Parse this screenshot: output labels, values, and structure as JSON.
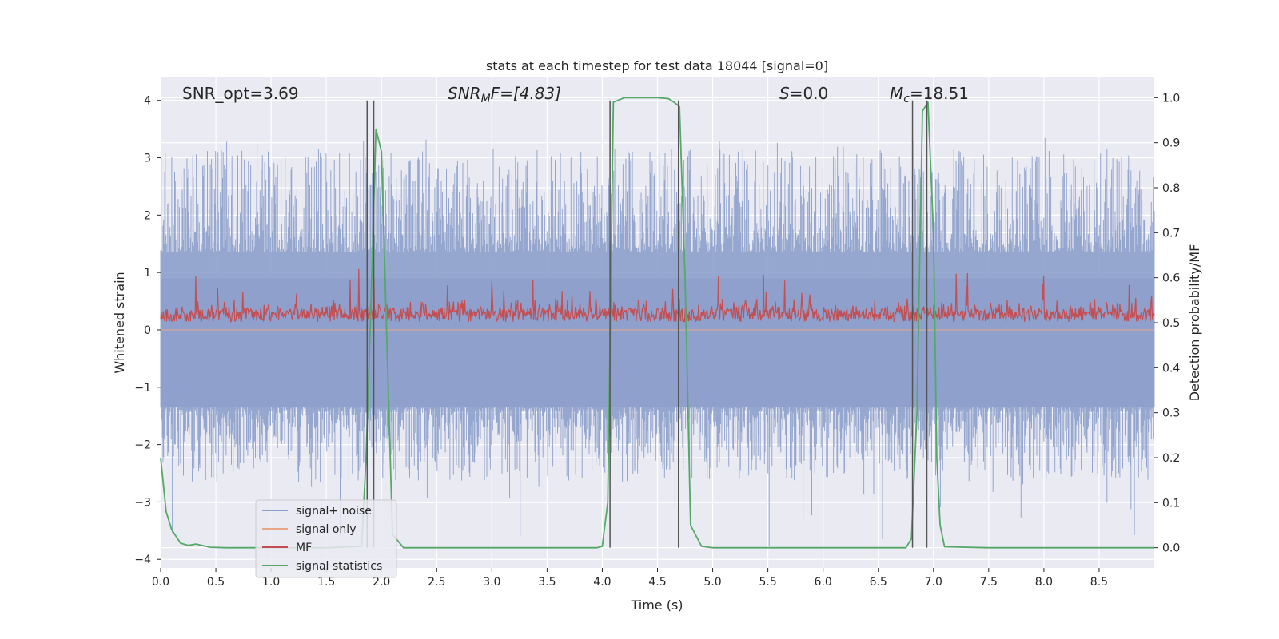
{
  "chart_data": {
    "type": "line",
    "title": "stats at each timestep for test data 18044 [signal=0]",
    "xlabel": "Time (s)",
    "ylabel_left": "Whitened strain",
    "ylabel_right": "Detection probability/MF",
    "xlim": [
      0.0,
      9.0
    ],
    "ylim_left": [
      -4.15,
      4.4
    ],
    "ylim_right": [
      -0.045,
      1.045
    ],
    "xticks": [
      0.0,
      0.5,
      1.0,
      1.5,
      2.0,
      2.5,
      3.0,
      3.5,
      4.0,
      4.5,
      5.0,
      5.5,
      6.0,
      6.5,
      7.0,
      7.5,
      8.0,
      8.5
    ],
    "xtick_labels": [
      "0.0",
      "0.5",
      "1.0",
      "1.5",
      "2.0",
      "2.5",
      "3.0",
      "3.5",
      "4.0",
      "4.5",
      "5.0",
      "5.5",
      "6.0",
      "6.5",
      "7.0",
      "7.5",
      "8.0",
      "8.5"
    ],
    "yticks_left": [
      4,
      3,
      2,
      1,
      0,
      -1,
      -2,
      -3,
      -4
    ],
    "yticks_left_labels": [
      "4",
      "3",
      "2",
      "1",
      "0",
      "−1",
      "−2",
      "−3",
      "−4"
    ],
    "yticks_right": [
      1.0,
      0.9,
      0.8,
      0.7,
      0.6,
      0.5,
      0.4,
      0.3,
      0.2,
      0.1,
      0.0
    ],
    "yticks_right_labels": [
      "1.0",
      "0.9",
      "0.8",
      "0.7",
      "0.6",
      "0.5",
      "0.4",
      "0.3",
      "0.2",
      "0.1",
      "0.0"
    ],
    "annotations": {
      "snr_opt": "SNR_opt=3.69",
      "snr_mf_main": "SNR",
      "snr_mf_sub": "M",
      "snr_mf_rest": "F=[4.83]",
      "s_main": "S",
      "s_rest": "=0.0",
      "mc_main": "M",
      "mc_sub": "c",
      "mc_rest": "=18.51"
    },
    "vertical_lines_x": [
      1.87,
      1.93,
      4.07,
      4.69,
      6.81,
      6.94
    ],
    "vertical_line_top": 4.0,
    "series": [
      {
        "name": "signal+ noise",
        "axis": "left",
        "color": "#8da0cb",
        "style": "noise",
        "typical_peak": 2.2,
        "max_peak": 3.35,
        "min_trough": -3.8
      },
      {
        "name": "signal only",
        "axis": "left",
        "color": "#e8a888",
        "style": "flat",
        "values": [
          0.0
        ]
      },
      {
        "name": "MF",
        "axis": "right",
        "color": "#c44e52",
        "style": "noise",
        "baseline": 0.5,
        "typical_peak": 0.55,
        "max_peak": 0.62
      },
      {
        "name": "signal statistics",
        "axis": "right",
        "color": "#55a868",
        "x": [
          0.0,
          0.05,
          0.1,
          0.18,
          0.25,
          0.32,
          0.45,
          0.6,
          1.0,
          1.5,
          1.82,
          1.86,
          1.9,
          1.95,
          2.0,
          2.05,
          2.1,
          2.2,
          2.5,
          3.0,
          3.5,
          3.95,
          4.0,
          4.05,
          4.1,
          4.2,
          4.3,
          4.5,
          4.6,
          4.65,
          4.7,
          4.75,
          4.8,
          4.9,
          5.0,
          5.5,
          6.0,
          6.5,
          6.75,
          6.8,
          6.85,
          6.9,
          6.95,
          7.0,
          7.03,
          7.06,
          7.1,
          7.5,
          8.0,
          8.5,
          9.0
        ],
        "values": [
          0.2,
          0.08,
          0.04,
          0.01,
          0.005,
          0.008,
          0.001,
          0.0,
          0.0,
          0.0,
          0.003,
          0.2,
          0.5,
          0.93,
          0.88,
          0.45,
          0.03,
          0.0,
          0.0,
          0.0,
          0.0,
          0.0,
          0.003,
          0.1,
          0.99,
          1.0,
          1.0,
          1.0,
          0.998,
          0.99,
          0.98,
          0.6,
          0.05,
          0.003,
          0.0,
          0.0,
          0.0,
          0.0,
          0.0,
          0.02,
          0.3,
          0.97,
          0.99,
          0.7,
          0.2,
          0.05,
          0.002,
          0.0,
          0.0,
          0.0,
          0.0
        ]
      }
    ],
    "legend": {
      "position": "lower-left",
      "entries": [
        "signal+ noise",
        "signal only",
        "MF",
        "signal statistics"
      ]
    }
  }
}
